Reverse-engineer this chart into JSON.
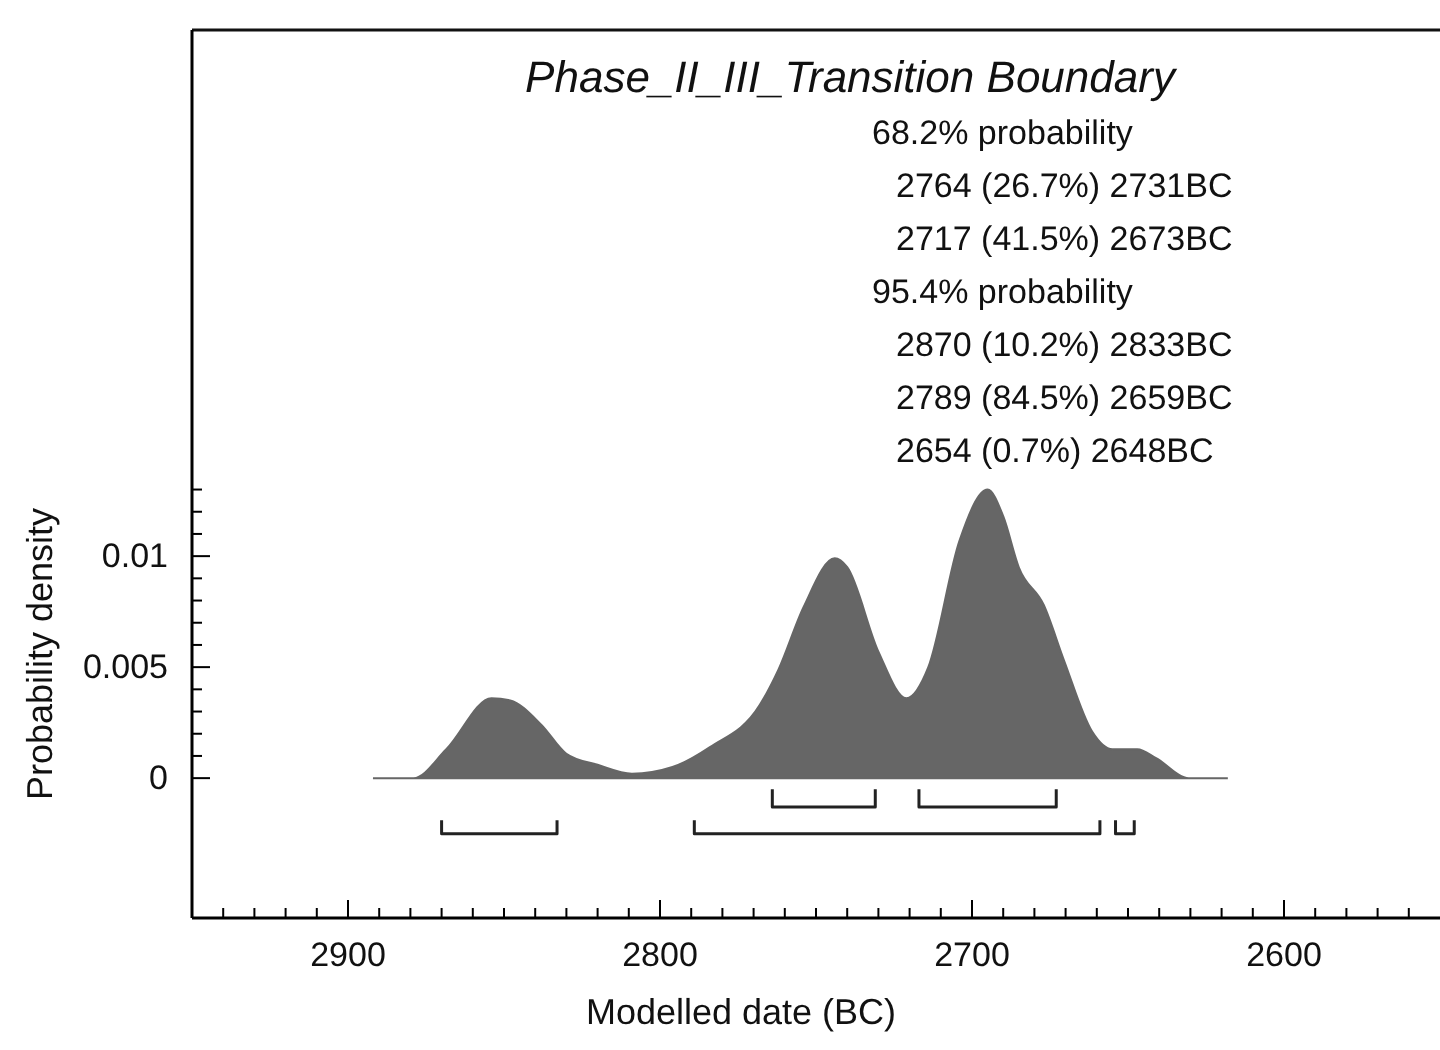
{
  "chart_data": {
    "type": "area",
    "title": "Phase_II_III_Transition Boundary",
    "xlabel": "Modelled date (BC)",
    "ylabel": "Probability density",
    "annotations": [
      "68.2% probability",
      "2764 (26.7%) 2731BC",
      "2717 (41.5%) 2673BC",
      "95.4% probability",
      "2870 (10.2%) 2833BC",
      "2789 (84.5%) 2659BC",
      "2654 (0.7%) 2648BC"
    ],
    "xlim": [
      2950,
      2550
    ],
    "xticks": [
      {
        "value": 2940,
        "label": null
      },
      {
        "value": 2930,
        "label": null
      },
      {
        "value": 2920,
        "label": null
      },
      {
        "value": 2910,
        "label": null
      },
      2900,
      {
        "value": 2890,
        "label": null
      },
      {
        "value": 2880,
        "label": null
      },
      {
        "value": 2870,
        "label": null
      },
      {
        "value": 2860,
        "label": null
      },
      {
        "value": 2850,
        "label": null
      },
      {
        "value": 2840,
        "label": null
      },
      {
        "value": 2830,
        "label": null
      },
      {
        "value": 2820,
        "label": null
      },
      {
        "value": 2810,
        "label": null
      },
      2800,
      {
        "value": 2790,
        "label": null
      },
      {
        "value": 2780,
        "label": null
      },
      {
        "value": 2770,
        "label": null
      },
      {
        "value": 2760,
        "label": null
      },
      {
        "value": 2750,
        "label": null
      },
      {
        "value": 2740,
        "label": null
      },
      {
        "value": 2730,
        "label": null
      },
      {
        "value": 2720,
        "label": null
      },
      {
        "value": 2710,
        "label": null
      },
      2700,
      {
        "value": 2690,
        "label": null
      },
      {
        "value": 2680,
        "label": null
      },
      {
        "value": 2670,
        "label": null
      },
      {
        "value": 2660,
        "label": null
      },
      {
        "value": 2650,
        "label": null
      },
      {
        "value": 2640,
        "label": null
      },
      {
        "value": 2630,
        "label": null
      },
      {
        "value": 2620,
        "label": null
      },
      {
        "value": 2610,
        "label": null
      },
      2600,
      {
        "value": 2590,
        "label": null
      },
      {
        "value": 2580,
        "label": null
      },
      {
        "value": 2570,
        "label": null
      },
      {
        "value": 2560,
        "label": null
      }
    ],
    "ylim": [
      -0.0063,
      0.0337
    ],
    "yticks": [
      0,
      {
        "value": 0.001,
        "label": null
      },
      {
        "value": 0.002,
        "label": null
      },
      {
        "value": 0.003,
        "label": null
      },
      {
        "value": 0.004,
        "label": null
      },
      0.005,
      {
        "value": 0.006,
        "label": null
      },
      {
        "value": 0.007,
        "label": null
      },
      {
        "value": 0.008,
        "label": null
      },
      {
        "value": 0.009,
        "label": null
      },
      0.01,
      {
        "value": 0.011,
        "label": null
      },
      {
        "value": 0.012,
        "label": null
      },
      {
        "value": 0.013,
        "label": null
      }
    ],
    "grid": false,
    "series": [
      {
        "color": "#666666",
        "x": [
          2892,
          2879,
          2868.5,
          2854,
          2848,
          2838,
          2830,
          2820,
          2809,
          2796,
          2784,
          2768,
          2762,
          2754,
          2744,
          2740,
          2730,
          2721,
          2714,
          2704,
          2695,
          2690,
          2685,
          2677,
          2670.5,
          2661.5,
          2655,
          2647,
          2641,
          2630.5,
          2618
        ],
        "values": [
          0,
          0,
          0.0013,
          0.0036,
          0.0035,
          0.0024,
          0.0011,
          0.0006,
          0.0002,
          0.0005,
          0.0014,
          0.0033,
          0.0049,
          0.0077,
          0.0099,
          0.0095,
          0.0057,
          0.0036,
          0.005,
          0.0107,
          0.013,
          0.0118,
          0.0095,
          0.0078,
          0.0053,
          0.0021,
          0.0013,
          0.0013,
          0.0009,
          0,
          0
        ]
      },
      {
        "type": "line",
        "color": "#222222",
        "x": [
          2764,
          2764,
          2731,
          2731,
          null,
          2717,
          2717,
          2673,
          2673,
          null,
          2870,
          2870,
          2833,
          2833,
          null,
          2789,
          2789,
          2659,
          2659,
          null,
          2654,
          2654,
          2648,
          2648
        ],
        "values": [
          -0.0005,
          -0.0013,
          -0.0013,
          -0.0005,
          null,
          -0.0005,
          -0.0013,
          -0.0013,
          -0.0005,
          null,
          -0.0019,
          -0.0025,
          -0.0025,
          -0.0019,
          null,
          -0.0019,
          -0.0025,
          -0.0025,
          -0.0019,
          null,
          -0.0019,
          -0.0025,
          -0.0025,
          -0.0019
        ]
      }
    ]
  }
}
